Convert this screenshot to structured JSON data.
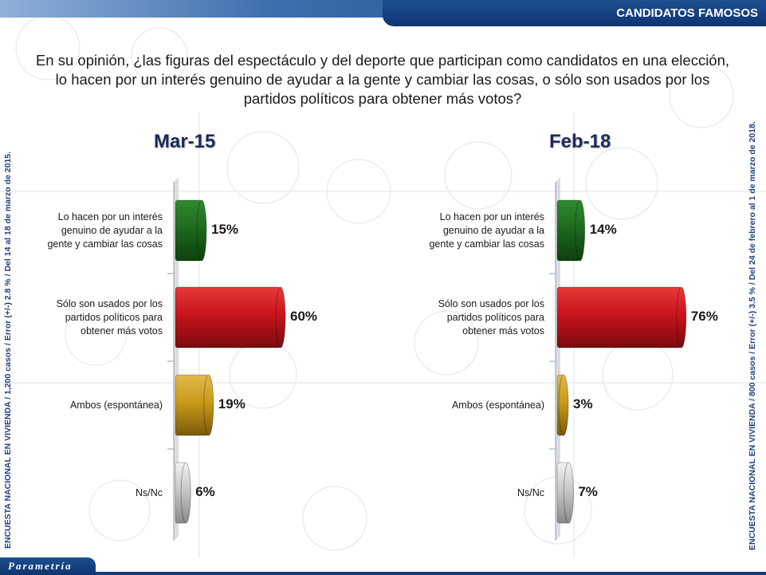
{
  "header": {
    "section_label": "CANDIDATOS FAMOSOS"
  },
  "question": "En su opinión, ¿las figuras del espectáculo y del deporte que participan como candidatos en una elección, lo hacen por un interés genuino de ayudar a la gente y cambiar las cosas, o sólo son usados por los partidos políticos para obtener más votos?",
  "side_notes": {
    "left": "ENCUESTA NACIONAL EN VIVIENDA / 1,200 casos / Error (+/-) 2.8 % / Del 14 al 18 de marzo de 2015.",
    "right": "ENCUESTA NACIONAL EN VIVIENDA / 800 casos / Error (+/-) 3.5 % / Del 24 de febrero  al 1 de marzo de 2018."
  },
  "logo": "Parametría",
  "colors": {
    "brand": "#123e7c",
    "bar_green": "#1e6b1e",
    "bar_red": "#c8141b",
    "bar_gold": "#c89a1a",
    "bar_silver": "#c8c8c8"
  },
  "chart_data": [
    {
      "type": "bar",
      "orientation": "horizontal",
      "title": "Mar-15",
      "categories": [
        "Lo hacen por un interés genuino de ayudar a la gente y cambiar las cosas",
        "Sólo son usados por los partidos políticos para obtener más votos",
        "Ambos (espontánea)",
        "Ns/Nc"
      ],
      "values": [
        15,
        60,
        19,
        6
      ],
      "value_labels": [
        "15%",
        "60%",
        "19%",
        "6%"
      ],
      "bar_colors": [
        "green",
        "red",
        "gold",
        "silver"
      ],
      "xlim": [
        0,
        100
      ]
    },
    {
      "type": "bar",
      "orientation": "horizontal",
      "title": "Feb-18",
      "categories": [
        "Lo hacen por un interés genuino de ayudar a la gente y cambiar las cosas",
        "Sólo son usados por los partidos políticos para obtener más votos",
        "Ambos (espontánea)",
        "Ns/Nc"
      ],
      "values": [
        14,
        76,
        3,
        7
      ],
      "value_labels": [
        "14%",
        "76%",
        "3%",
        "7%"
      ],
      "bar_colors": [
        "green",
        "red",
        "gold",
        "silver"
      ],
      "xlim": [
        0,
        100
      ]
    }
  ]
}
